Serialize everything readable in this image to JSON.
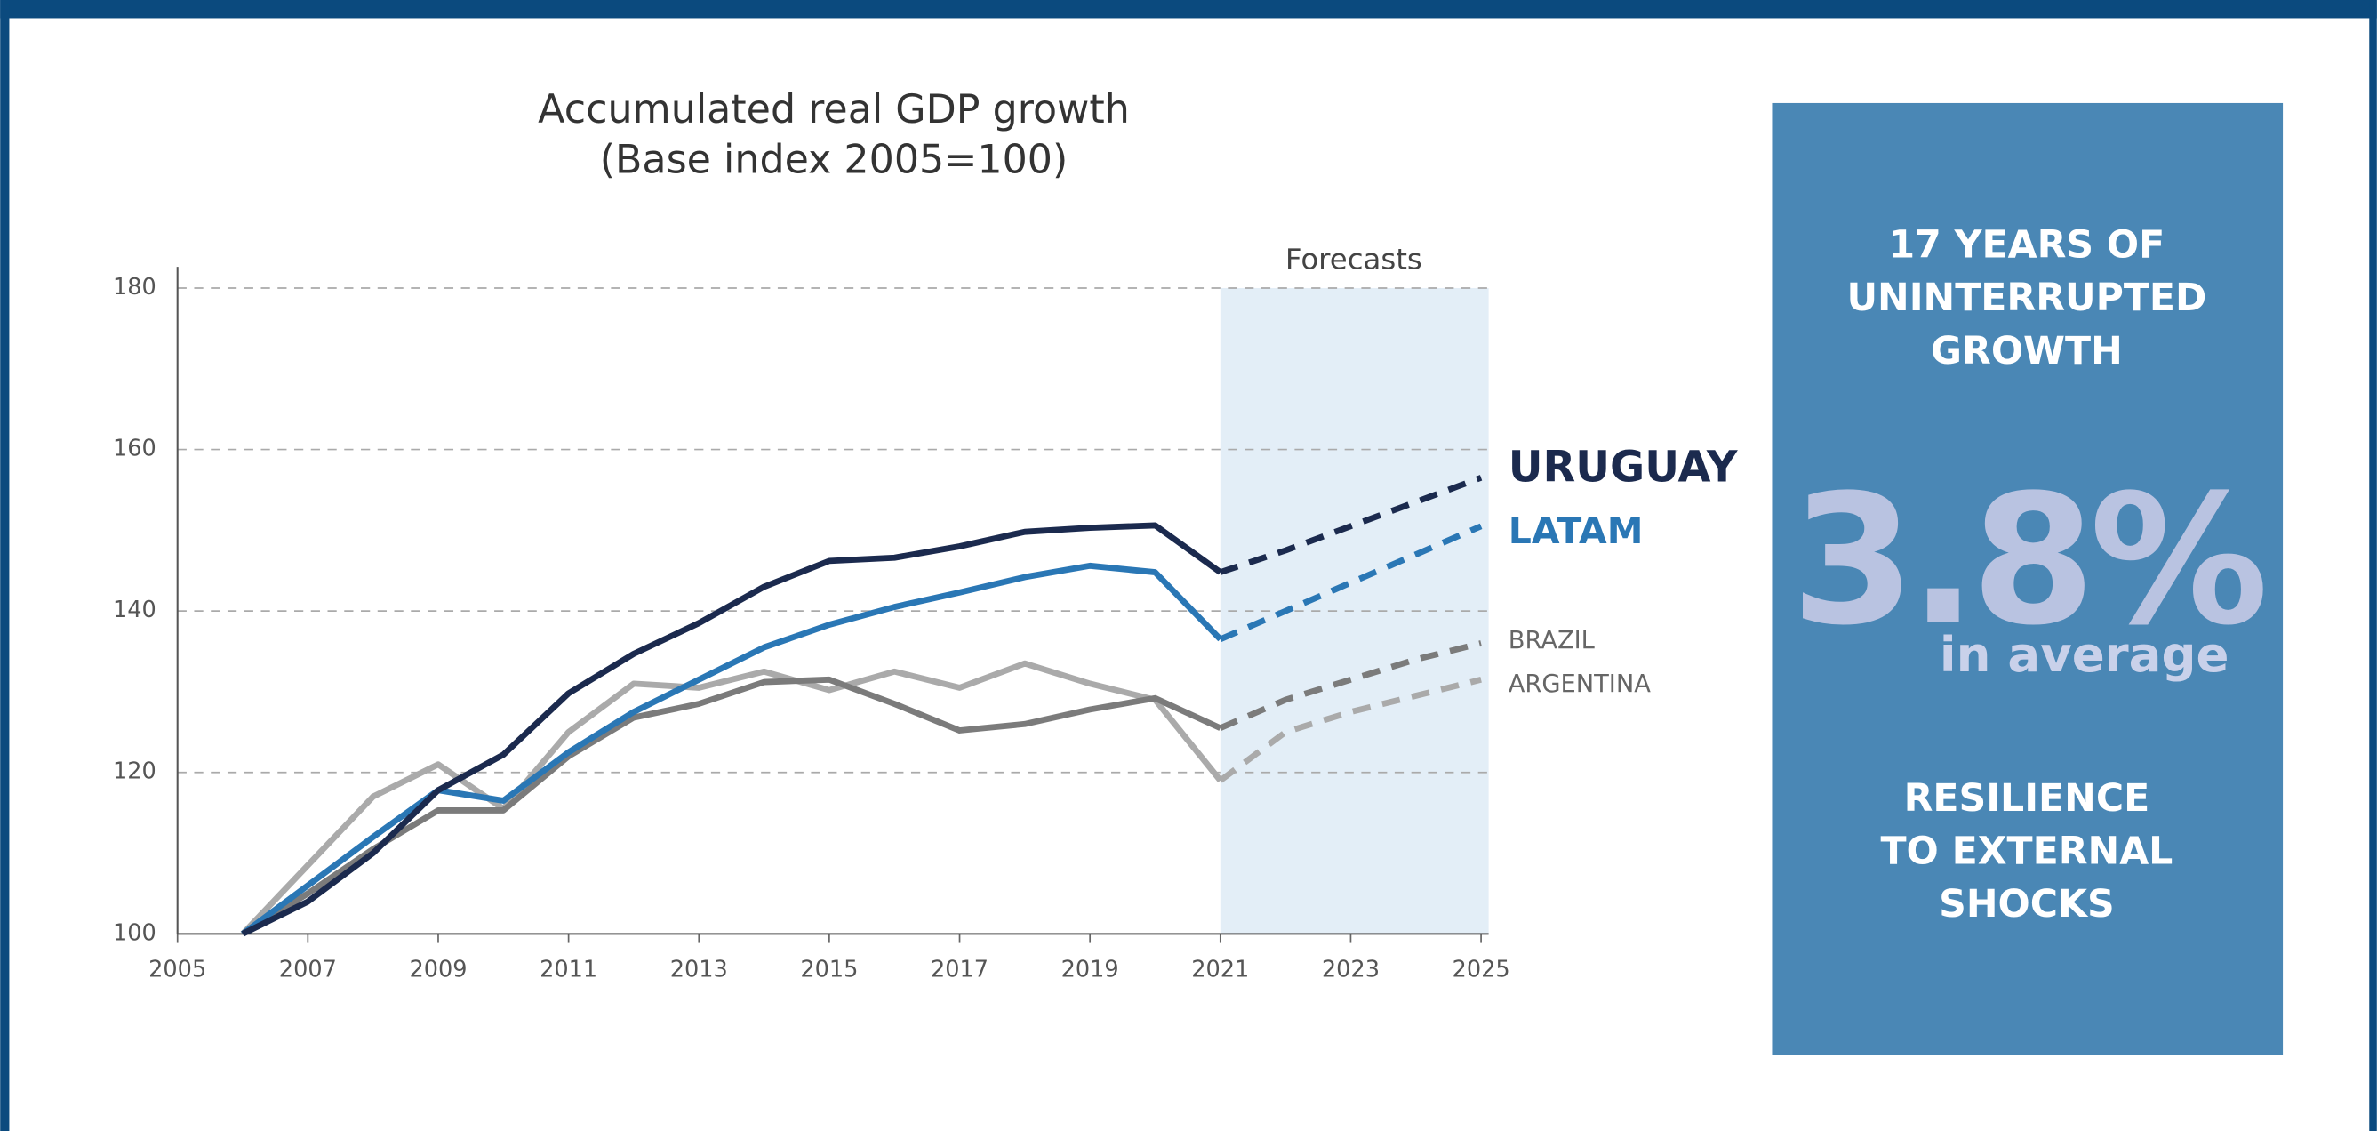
{
  "chart_data": {
    "type": "line",
    "title": [
      "Accumulated real GDP growth",
      "(Base index 2005=100)"
    ],
    "x": [
      2006,
      2007,
      2008,
      2009,
      2010,
      2011,
      2012,
      2013,
      2014,
      2015,
      2016,
      2017,
      2018,
      2019,
      2020,
      2021,
      2022,
      2023,
      2024,
      2025
    ],
    "series": [
      {
        "name": "URUGUAY",
        "color": "#1b2a4e",
        "values": [
          100,
          104,
          110,
          117.8,
          122.2,
          129.8,
          134.7,
          138.5,
          143,
          146.2,
          146.6,
          148,
          149.8,
          150.3,
          150.6,
          144.8,
          147.5,
          150.5,
          153.5,
          156.5
        ]
      },
      {
        "name": "LATAM",
        "color": "#2a77b5",
        "values": [
          100,
          106,
          112,
          117.8,
          116.5,
          122.5,
          127.5,
          131.5,
          135.5,
          138.3,
          140.5,
          142.3,
          144.2,
          145.6,
          144.8,
          136.5,
          140,
          143.5,
          147,
          150.5
        ]
      },
      {
        "name": "BRAZIL",
        "color": "#7b7b7b",
        "values": [
          100,
          105,
          110.5,
          115.3,
          115.3,
          122,
          126.8,
          128.5,
          131.2,
          131.5,
          128.5,
          125.2,
          126,
          127.8,
          129.2,
          125.5,
          129,
          131.5,
          134,
          136
        ]
      },
      {
        "name": "ARGENTINA",
        "color": "#aaaaaa",
        "values": [
          100,
          108.5,
          117,
          121,
          115.5,
          125,
          131,
          130.5,
          132.5,
          130.2,
          132.5,
          130.5,
          133.5,
          131,
          129,
          119,
          125,
          127.5,
          129.5,
          131.5
        ]
      }
    ],
    "xlim": [
      2005,
      2025
    ],
    "xticks": [
      2005,
      2007,
      2009,
      2011,
      2013,
      2015,
      2017,
      2019,
      2021,
      2023,
      2025
    ],
    "ylim": [
      100,
      180
    ],
    "yticks": [
      100,
      120,
      140,
      160,
      180
    ],
    "grid": true,
    "forecast": {
      "label": "Forecasts",
      "range": [
        2021,
        2025
      ]
    }
  },
  "panel": {
    "headline": [
      "17 YEARS OF",
      "UNINTERRUPTED",
      "GROWTH"
    ],
    "figure": "3.8%",
    "figure_caption": "in average",
    "footer": [
      "RESILIENCE",
      "TO EXTERNAL",
      "SHOCKS"
    ]
  }
}
